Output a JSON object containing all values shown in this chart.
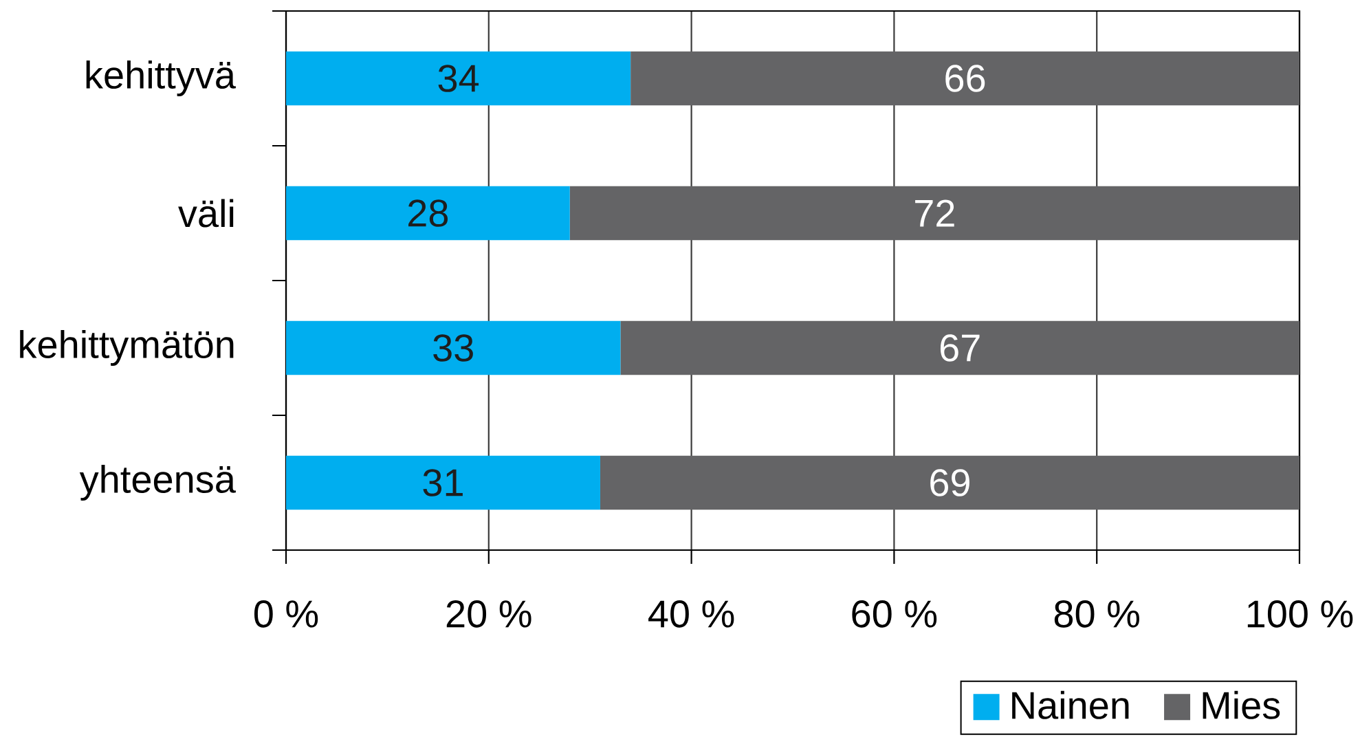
{
  "chart_data": {
    "type": "bar",
    "orientation": "horizontal",
    "stacked": true,
    "categories": [
      "kehittyvä",
      "väli",
      "kehittymätön",
      "yhteensä"
    ],
    "series": [
      {
        "name": "Nainen",
        "color": "#00aeef",
        "values": [
          34,
          28,
          33,
          31
        ]
      },
      {
        "name": "Mies",
        "color": "#646466",
        "values": [
          66,
          72,
          67,
          69
        ]
      }
    ],
    "xlim": [
      0,
      100
    ],
    "xticks": [
      {
        "value": 0,
        "label": "0 %"
      },
      {
        "value": 20,
        "label": "20 %"
      },
      {
        "value": 40,
        "label": "40 %"
      },
      {
        "value": 60,
        "label": "60 %"
      },
      {
        "value": 80,
        "label": "80 %"
      },
      {
        "value": 100,
        "label": "100 %"
      }
    ],
    "grid": "x",
    "legend": "bottom right",
    "data_labels": true
  }
}
